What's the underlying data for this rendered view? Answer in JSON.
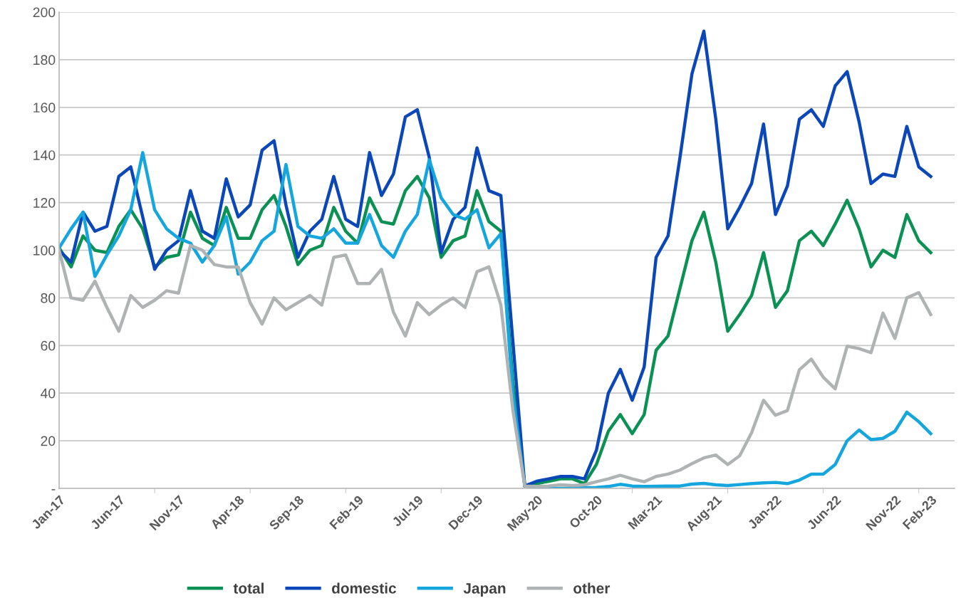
{
  "chart_data": {
    "type": "line",
    "categories": [
      "Jan-17",
      null,
      null,
      null,
      null,
      "Jun-17",
      null,
      null,
      null,
      null,
      "Nov-17",
      null,
      null,
      null,
      null,
      "Apr-18",
      null,
      null,
      null,
      null,
      "Sep-18",
      null,
      null,
      null,
      null,
      "Feb-19",
      null,
      null,
      null,
      null,
      "Jul-19",
      null,
      null,
      null,
      null,
      "Dec-19",
      null,
      null,
      null,
      null,
      "May-20",
      null,
      null,
      null,
      null,
      "Oct-20",
      null,
      null,
      null,
      null,
      "Mar-21",
      null,
      null,
      null,
      null,
      "Aug-21",
      null,
      null,
      null,
      null,
      "Jan-22",
      null,
      null,
      null,
      null,
      "Jun-22",
      null,
      null,
      null,
      null,
      "Nov-22",
      null,
      null,
      "Feb-23"
    ],
    "series": [
      {
        "name": "total",
        "color": "#0b9153",
        "values": [
          101,
          93,
          106,
          100,
          99,
          110,
          117,
          109,
          93,
          97,
          98,
          116,
          105,
          102,
          118,
          105,
          105,
          117,
          123,
          110,
          94,
          100,
          102,
          118,
          108,
          103,
          122,
          112,
          111,
          125,
          131,
          122,
          97,
          104,
          106,
          125,
          112,
          108,
          45,
          1,
          2,
          3,
          4,
          4,
          2,
          10,
          24,
          31,
          23,
          31,
          58,
          64,
          84,
          104,
          116,
          95,
          66,
          73,
          81,
          99,
          76,
          83,
          104,
          108,
          102,
          111,
          121,
          109,
          93,
          100,
          97,
          115,
          104,
          99
        ]
      },
      {
        "name": "domestic",
        "color": "#0b47b8",
        "values": [
          100,
          95,
          116,
          108,
          110,
          131,
          135,
          114,
          92,
          100,
          104,
          125,
          108,
          105,
          130,
          114,
          119,
          142,
          146,
          119,
          97,
          108,
          113,
          131,
          113,
          110,
          141,
          123,
          132,
          156,
          159,
          139,
          99,
          113,
          118,
          143,
          125,
          123,
          62,
          1,
          3,
          4,
          5,
          5,
          4,
          16,
          40,
          50,
          37,
          51,
          97,
          106,
          139,
          174,
          192,
          155,
          109,
          118,
          128,
          153,
          115,
          127,
          155,
          159,
          152,
          169,
          175,
          154,
          128,
          132,
          131,
          152,
          135,
          131
        ]
      },
      {
        "name": "Japan",
        "color": "#16a6de",
        "values": [
          101,
          109,
          116,
          89,
          98,
          106,
          117,
          141,
          117,
          109,
          105,
          103,
          95,
          102,
          114,
          90,
          95,
          104,
          108,
          136,
          110,
          106,
          105,
          109,
          103,
          103,
          115,
          102,
          97,
          108,
          115,
          138,
          122,
          115,
          113,
          117,
          101,
          107,
          40,
          1,
          0.2,
          0,
          0,
          0,
          0.3,
          0.4,
          0.8,
          1.7,
          1,
          0.8,
          0.9,
          1,
          1,
          1.8,
          2.1,
          1.5,
          1.2,
          1.6,
          2,
          2.3,
          2.5,
          2,
          3.5,
          6,
          6,
          10,
          20,
          24.5,
          20.5,
          21,
          24,
          32,
          28,
          23
        ]
      },
      {
        "name": "other",
        "color": "#b0b3b3",
        "values": [
          100,
          80,
          79,
          87,
          76,
          66,
          81,
          76,
          79,
          83,
          82,
          102,
          100,
          94,
          93,
          93,
          78,
          69,
          80,
          75,
          78,
          81,
          77,
          97,
          98,
          86,
          86,
          92,
          74,
          64,
          78,
          73,
          77,
          80,
          76,
          91,
          93,
          77,
          33,
          1,
          0.8,
          1,
          1.5,
          1.2,
          1.5,
          2.8,
          4,
          5.5,
          4,
          2.8,
          5,
          6,
          7.7,
          10.4,
          12.8,
          14,
          10,
          13.7,
          23.4,
          37,
          30.7,
          32.7,
          49.8,
          54.3,
          46.7,
          41.8,
          59.7,
          58.7,
          57,
          73.6,
          63,
          80,
          82.2,
          73
        ]
      }
    ],
    "ylim": [
      0,
      200
    ],
    "yticks": [
      {
        "value": 0,
        "label": "-"
      },
      20,
      40,
      60,
      80,
      100,
      120,
      140,
      160,
      180,
      200
    ],
    "grid": "y",
    "legend": "bottom",
    "marker": "none",
    "line_style": "solid"
  }
}
